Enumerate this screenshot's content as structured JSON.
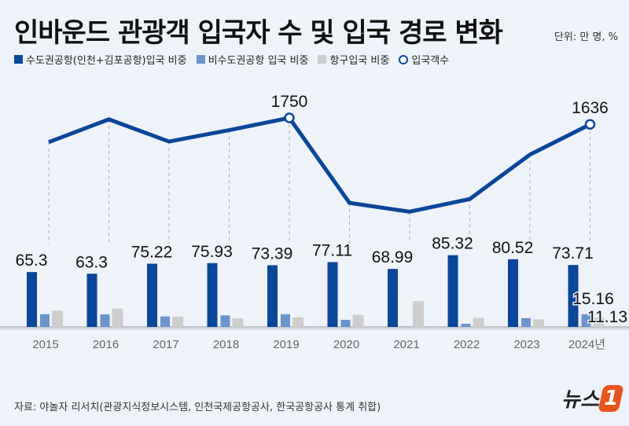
{
  "title": "인바운드 관광객 입국자 수 및 입국 경로 변화",
  "unit": "단위: 만 명, %",
  "source": "자료: 야놀자 리서치(관광지식정보시스템, 인천국제공항공사, 한국공항공사 통계 취합)",
  "logo": "뉴스1",
  "chart_data": {
    "type": "bar+line",
    "categories": [
      "2015",
      "2016",
      "2017",
      "2018",
      "2019",
      "2020",
      "2021",
      "2022",
      "2023",
      "2024년"
    ],
    "series": [
      {
        "name": "수도권공항(인천+김포공항)입국 비중",
        "type": "bar",
        "color": "#0a4699",
        "values": [
          65.3,
          63.3,
          75.22,
          75.93,
          73.39,
          77.11,
          68.99,
          85.32,
          80.52,
          73.71
        ],
        "labels_shown": true
      },
      {
        "name": "비수도권공항 입국 비중",
        "type": "bar",
        "color": "#6b93cc",
        "values": [
          15.2,
          15.0,
          12.5,
          13.8,
          15.2,
          8.5,
          0.3,
          3.8,
          10.5,
          15.16
        ],
        "labels_shown": [
          false,
          false,
          false,
          false,
          false,
          false,
          false,
          false,
          false,
          true
        ]
      },
      {
        "name": "항구입국 비중",
        "type": "bar",
        "color": "#cdcdcd",
        "values": [
          19.5,
          21.7,
          12.3,
          10.3,
          11.4,
          14.4,
          30.7,
          10.9,
          9.0,
          11.13
        ],
        "labels_shown": [
          false,
          false,
          false,
          false,
          false,
          false,
          false,
          false,
          false,
          true
        ]
      },
      {
        "name": "입국객수",
        "type": "line",
        "color": "#0a4699",
        "values": [
          1323,
          1724,
          1334,
          1535,
          1750,
          252,
          97,
          320,
          1103,
          1636
        ],
        "labeled_points": [
          "2019",
          "2024년"
        ]
      }
    ],
    "grid": false,
    "legend_placement": "top-left"
  }
}
